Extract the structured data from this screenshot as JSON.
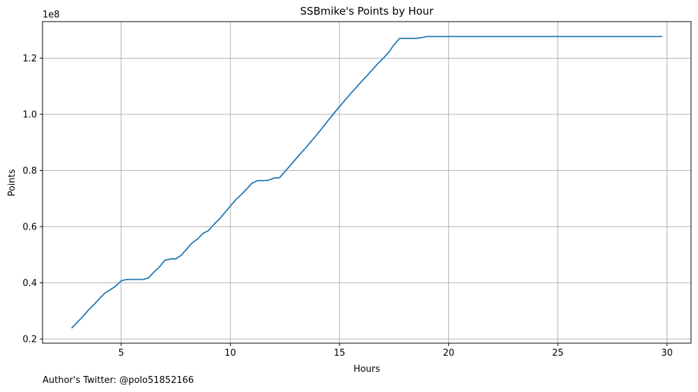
{
  "caption": "Author's Twitter: @polo51852166",
  "chart_data": {
    "type": "line",
    "title": "SSBmike's Points by Hour",
    "xlabel": "Hours",
    "ylabel": "Points",
    "y_offset_text": "1e8",
    "xlim": [
      1.4,
      31.1
    ],
    "ylim": [
      18500000,
      133000000
    ],
    "x_ticks": [
      5,
      10,
      15,
      20,
      25,
      30
    ],
    "x_tick_labels": [
      "5",
      "10",
      "15",
      "20",
      "25",
      "30"
    ],
    "y_ticks": [
      20000000,
      40000000,
      60000000,
      80000000,
      100000000,
      120000000
    ],
    "y_tick_labels": [
      "0.2",
      "0.4",
      "0.6",
      "0.8",
      "1.0",
      "1.2"
    ],
    "grid": true,
    "line_color": "#1f77b4",
    "series": [
      {
        "x": [
          2.75,
          3.0,
          3.25,
          3.5,
          3.75,
          4.0,
          4.25,
          4.5,
          4.75,
          5.0,
          5.25,
          5.5,
          5.75,
          6.0,
          6.25,
          6.5,
          6.75,
          7.0,
          7.25,
          7.5,
          7.75,
          8.0,
          8.25,
          8.5,
          8.75,
          9.0,
          9.25,
          9.5,
          9.75,
          10.0,
          10.25,
          10.5,
          10.75,
          11.0,
          11.25,
          11.5,
          11.75,
          12.0,
          12.25,
          12.5,
          12.75,
          13.0,
          13.25,
          13.5,
          13.75,
          14.0,
          14.25,
          14.5,
          14.75,
          15.0,
          15.25,
          15.5,
          15.75,
          16.0,
          16.25,
          16.5,
          16.75,
          17.0,
          17.25,
          17.5,
          17.75,
          18.0,
          18.25,
          18.5,
          18.75,
          19.0,
          19.5,
          20.0,
          21.0,
          22.0,
          23.0,
          24.0,
          25.0,
          26.0,
          27.0,
          28.0,
          29.0,
          29.75
        ],
        "y": [
          24000000,
          26000000,
          28000000,
          30300000,
          32200000,
          34300000,
          36300000,
          37500000,
          38800000,
          40700000,
          41200000,
          41200000,
          41200000,
          41200000,
          41700000,
          43800000,
          45600000,
          48000000,
          48500000,
          48500000,
          49800000,
          52000000,
          54200000,
          55600000,
          57600000,
          58600000,
          60800000,
          62700000,
          65000000,
          67300000,
          69600000,
          71400000,
          73400000,
          75500000,
          76400000,
          76400000,
          76500000,
          77300000,
          77400000,
          79600000,
          81800000,
          84100000,
          86300000,
          88500000,
          90800000,
          93100000,
          95500000,
          98000000,
          100400000,
          102700000,
          105000000,
          107300000,
          109400000,
          111600000,
          113700000,
          115800000,
          118000000,
          119900000,
          122000000,
          124800000,
          127000000,
          127000000,
          127000000,
          127000000,
          127300000,
          127700000,
          127700000,
          127700000,
          127700000,
          127700000,
          127700000,
          127700000,
          127700000,
          127700000,
          127700000,
          127700000,
          127700000,
          127700000
        ]
      }
    ]
  }
}
